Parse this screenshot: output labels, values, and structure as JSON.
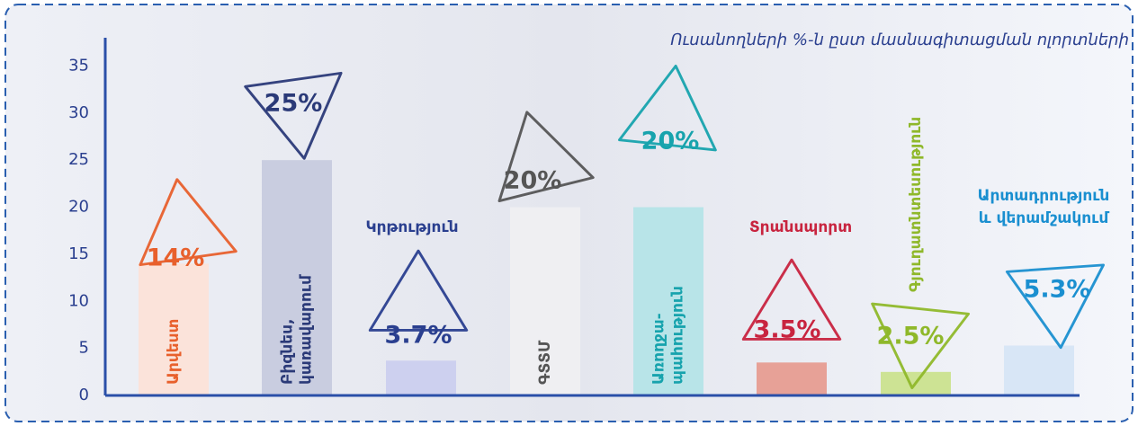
{
  "chart_data": {
    "type": "bar",
    "title": "Ուսանողների %-ն ըստ մասնագիտացման ոլորտների",
    "categories": [
      "Արվեստ",
      "Բիզնես,\nկառավարում",
      "Կրթություն",
      "ԳՏՏՄ",
      "Առողջա-\nպահություն",
      "Տրանսպորտ",
      "Գյուղատնտեսություն",
      "Արտադրություն\nև վերամշակում"
    ],
    "values": [
      14,
      25,
      3.7,
      20,
      20,
      3.5,
      2.5,
      5.3
    ],
    "value_labels": [
      "14%",
      "25%",
      "3.7%",
      "20%",
      "20%",
      "3.5%",
      "2.5%",
      "5.3%"
    ],
    "colors": [
      "#fbe3da",
      "#c9cde0",
      "#cdd0ef",
      "#efeff2",
      "#b8e4e8",
      "#e7a197",
      "#cde394",
      "#d8e6f6"
    ],
    "label_colors": [
      "#e8602c",
      "#2b3a78",
      "#2a3f8f",
      "#555555",
      "#17a3ad",
      "#c8243f",
      "#8fb82a",
      "#1a8fd0"
    ],
    "ylim": [
      0,
      38
    ],
    "yticks": [
      0,
      5,
      10,
      15,
      20,
      25,
      30,
      35
    ],
    "grid": false
  }
}
